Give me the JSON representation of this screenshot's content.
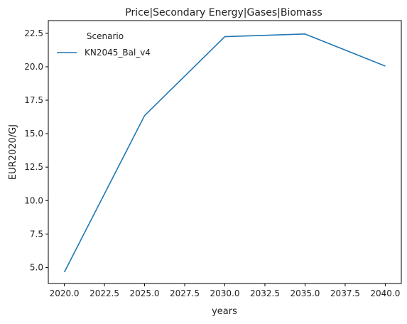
{
  "chart_data": {
    "type": "line",
    "title": "Price|Secondary Energy|Gases|Biomass",
    "xlabel": "years",
    "ylabel": "EUR2020/GJ",
    "x": [
      2020,
      2025,
      2030,
      2035,
      2040
    ],
    "series": [
      {
        "name": "KN2045_Bal_v4",
        "color": "#1f77b4",
        "values": [
          4.65,
          16.35,
          22.25,
          22.45,
          20.05
        ]
      }
    ],
    "xlim": [
      2019,
      2041
    ],
    "ylim": [
      3.8,
      23.45
    ],
    "x_ticks": [
      "2020.0",
      "2022.5",
      "2025.0",
      "2027.5",
      "2030.0",
      "2032.5",
      "2035.0",
      "2037.5",
      "2040.0"
    ],
    "y_ticks": [
      "5.0",
      "7.5",
      "10.0",
      "12.5",
      "15.0",
      "17.5",
      "20.0",
      "22.5"
    ],
    "legend": {
      "title": "Scenario",
      "placement": "top-left"
    },
    "grid": false
  }
}
